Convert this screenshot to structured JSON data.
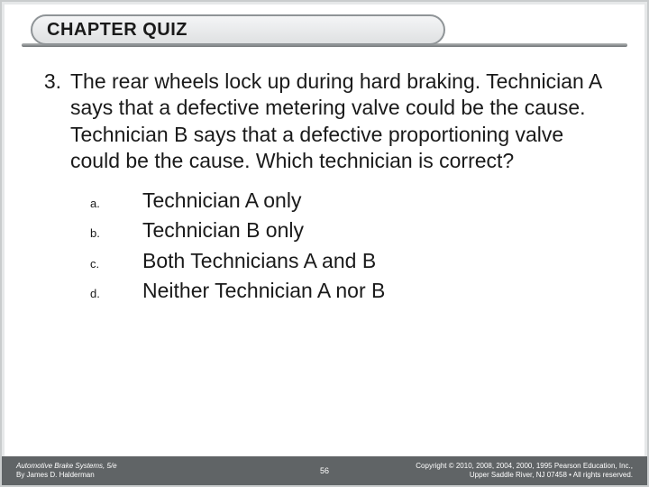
{
  "header": {
    "title": "CHAPTER QUIZ"
  },
  "question": {
    "number": "3.",
    "text": "The rear wheels lock up during hard braking. Technician A says that a defective metering valve could be the cause. Technician B says that a defective proportioning valve could be the cause. Which technician is correct?"
  },
  "options": [
    {
      "letter": "a.",
      "text": "Technician A only"
    },
    {
      "letter": "b.",
      "text": "Technician B only"
    },
    {
      "letter": "c.",
      "text": "Both Technicians A and B"
    },
    {
      "letter": "d.",
      "text": "Neither Technician A nor B"
    }
  ],
  "footer": {
    "book_title": "Automotive Brake Systems, 5/e",
    "author": "By James D. Halderman",
    "page": "56",
    "copyright_line1": "Copyright © 2010, 2008, 2004, 2000, 1995 Pearson Education, Inc.,",
    "copyright_line2": "Upper Saddle River, NJ 07458 • All rights reserved."
  },
  "colors": {
    "footer_bg": "#606466",
    "text": "#1a1a1a",
    "tab_border": "#8f9497"
  }
}
